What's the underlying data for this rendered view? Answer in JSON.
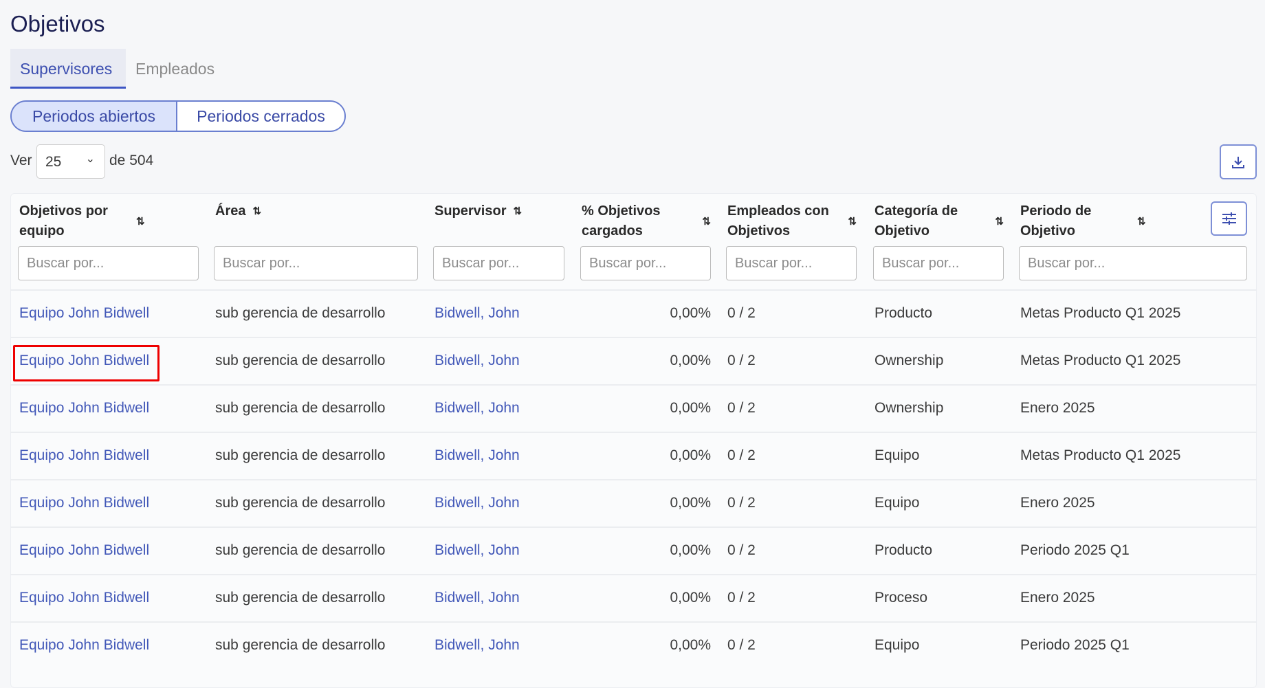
{
  "title": "Objetivos",
  "tabs": [
    {
      "label": "Supervisores",
      "active": true
    },
    {
      "label": "Empleados",
      "active": false
    }
  ],
  "periods": {
    "open": "Periodos abiertos",
    "closed": "Periodos cerrados",
    "selected": "open"
  },
  "pagination": {
    "ver": "Ver",
    "page_size": "25",
    "total": "de 504"
  },
  "icons": {
    "download": "download-icon",
    "columns": "sliders-icon",
    "sort": "sort-arrows-icon"
  },
  "table": {
    "columns": [
      "Objetivos por equipo",
      "Área",
      "Supervisor",
      "% Objetivos cargados",
      "Empleados con Objetivos",
      "Categoría de Objetivo",
      "Periodo de Objetivo"
    ],
    "search_placeholder": "Buscar por...",
    "rows": [
      [
        "Equipo John Bidwell",
        "sub gerencia de desarrollo",
        "Bidwell, John",
        "0,00%",
        "0 / 2",
        "Producto",
        "Metas Producto Q1 2025"
      ],
      [
        "Equipo John Bidwell",
        "sub gerencia de desarrollo",
        "Bidwell, John",
        "0,00%",
        "0 / 2",
        "Ownership",
        "Metas Producto Q1 2025"
      ],
      [
        "Equipo John Bidwell",
        "sub gerencia de desarrollo",
        "Bidwell, John",
        "0,00%",
        "0 / 2",
        "Ownership",
        "Enero 2025"
      ],
      [
        "Equipo John Bidwell",
        "sub gerencia de desarrollo",
        "Bidwell, John",
        "0,00%",
        "0 / 2",
        "Equipo",
        "Metas Producto Q1 2025"
      ],
      [
        "Equipo John Bidwell",
        "sub gerencia de desarrollo",
        "Bidwell, John",
        "0,00%",
        "0 / 2",
        "Equipo",
        "Enero 2025"
      ],
      [
        "Equipo John Bidwell",
        "sub gerencia de desarrollo",
        "Bidwell, John",
        "0,00%",
        "0 / 2",
        "Producto",
        "Periodo 2025 Q1"
      ],
      [
        "Equipo John Bidwell",
        "sub gerencia de desarrollo",
        "Bidwell, John",
        "0,00%",
        "0 / 2",
        "Proceso",
        "Enero 2025"
      ],
      [
        "Equipo John Bidwell",
        "sub gerencia de desarrollo",
        "Bidwell, John",
        "0,00%",
        "0 / 2",
        "Equipo",
        "Periodo 2025 Q1"
      ]
    ]
  },
  "colors": {
    "accent": "#3d55c4",
    "link": "#4258b8",
    "highlight": "#e00000"
  }
}
